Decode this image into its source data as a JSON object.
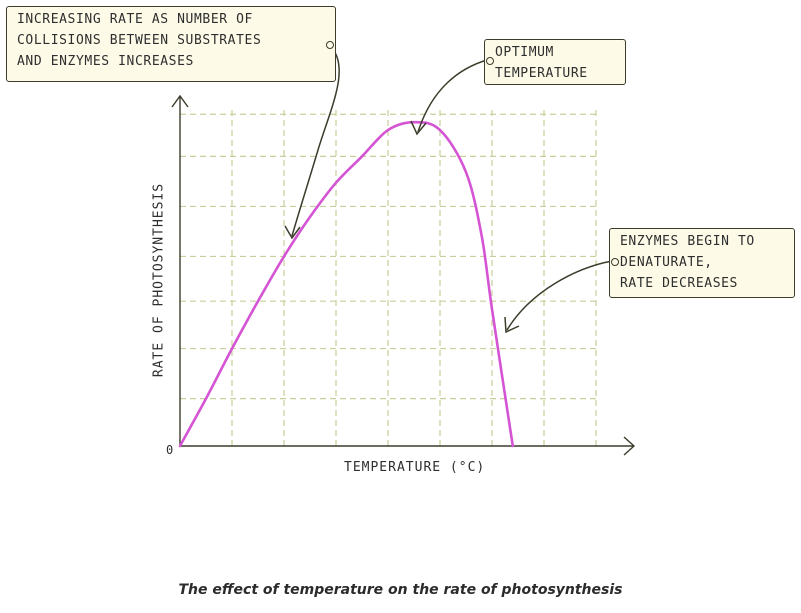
{
  "callouts": {
    "collisions": [
      "INCREASING RATE AS NUMBER OF",
      "COLLISIONS BETWEEN SUBSTRATES",
      "AND ENZYMES INCREASES"
    ],
    "optimum": [
      "OPTIMUM",
      "TEMPERATURE"
    ],
    "denature": [
      "ENZYMES BEGIN TO",
      "DENATURATE,",
      "RATE DECREASES"
    ]
  },
  "caption": "The effect of temperature on the rate of photosynthesis",
  "colors": {
    "curve": "#d454d4",
    "grid": "#c8cf9a",
    "axis": "#3c3c2c",
    "callout_bg": "#fdfbe8"
  },
  "chart_data": {
    "type": "line",
    "xlabel": "TEMPERATURE (°C)",
    "ylabel": "RATE OF PHOTOSYNTHESIS",
    "origin_label": "0",
    "grid": true,
    "xlim": [
      0,
      8
    ],
    "ylim": [
      0,
      6.4
    ],
    "series": [
      {
        "x": [
          0,
          0.5,
          1,
          1.5,
          2,
          2.5,
          3,
          3.5,
          4,
          4.5,
          5,
          5.5,
          5.8,
          6.0,
          6.4
        ],
        "y": [
          0,
          0.9,
          1.85,
          2.75,
          3.6,
          4.35,
          5.0,
          5.5,
          6.0,
          6.15,
          6.0,
          5.2,
          4.0,
          2.6,
          0
        ]
      }
    ],
    "annotations": [
      "optimum",
      "collisions",
      "denature"
    ]
  }
}
